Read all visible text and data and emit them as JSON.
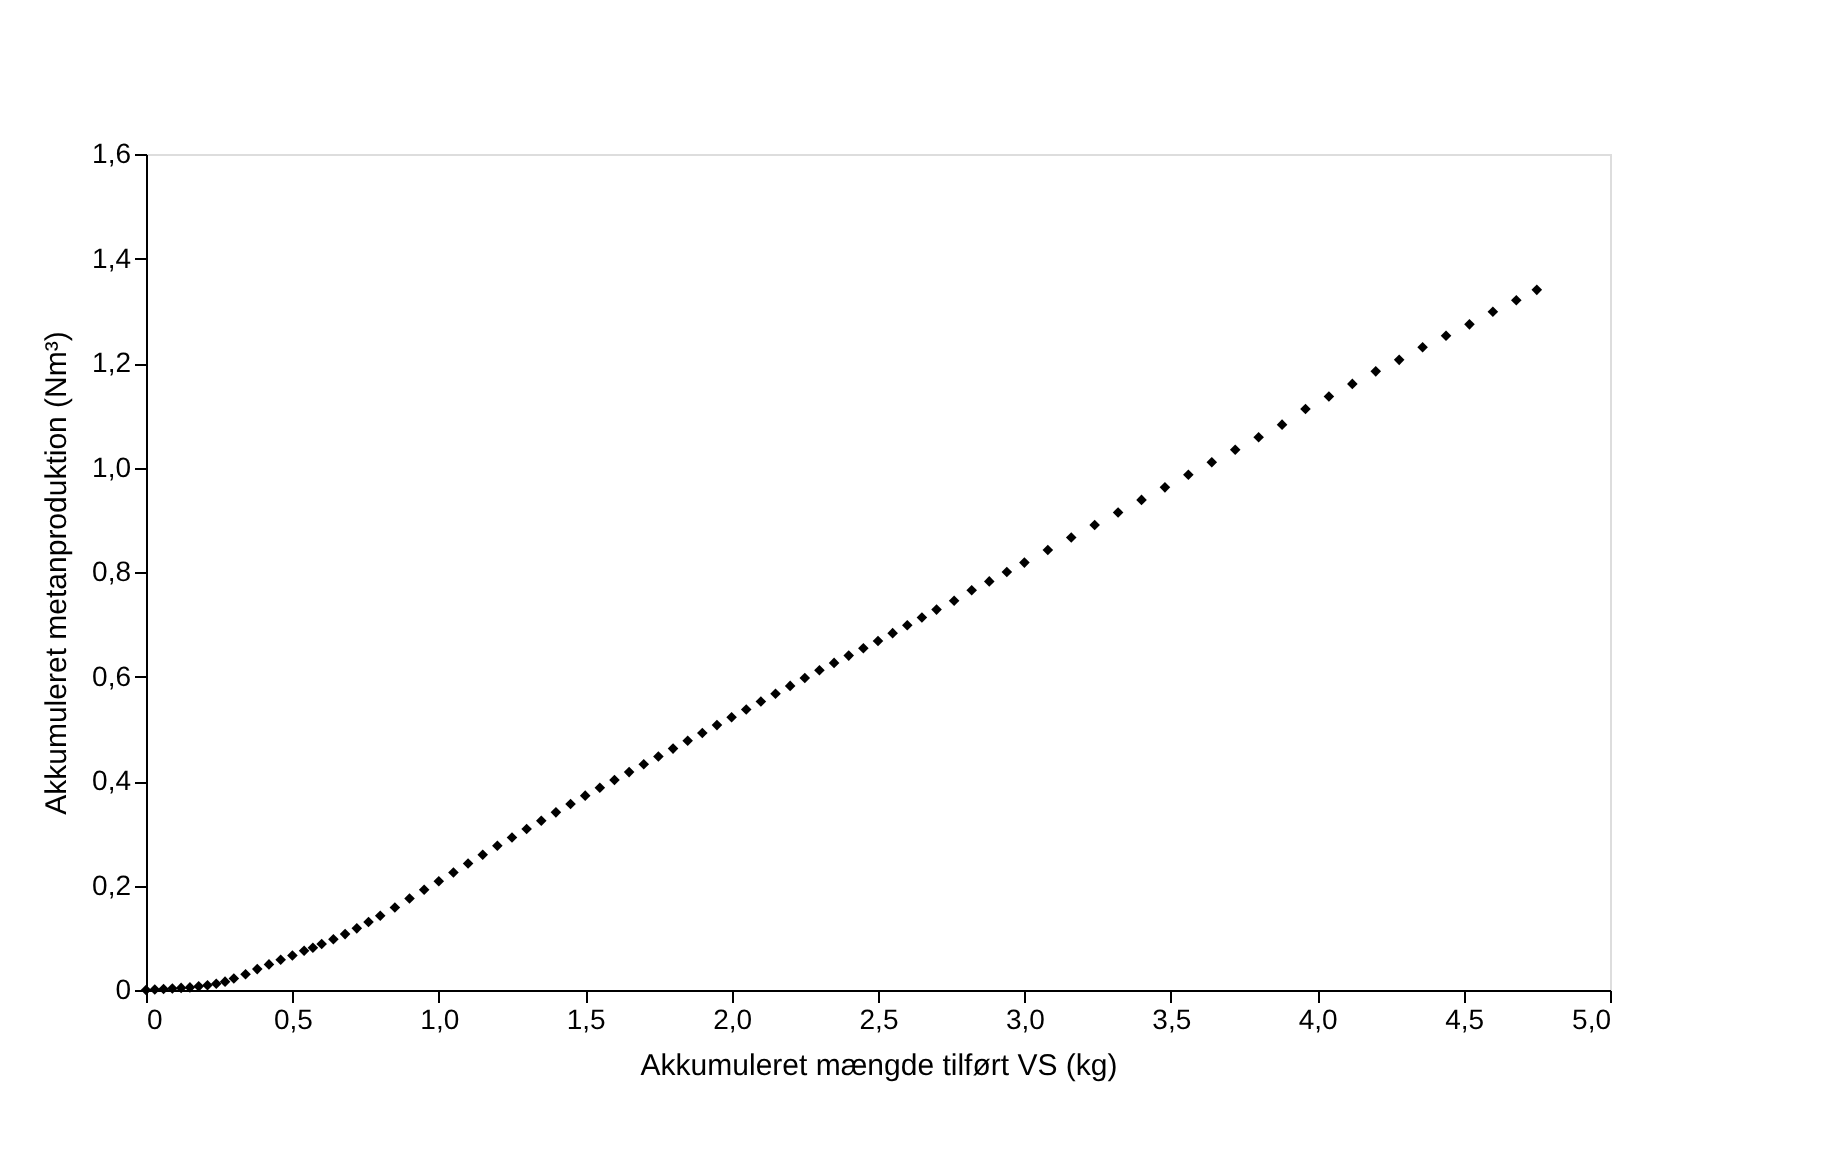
{
  "chart_data": {
    "type": "scatter",
    "xlabel": "Akkumuleret mængde tilført VS (kg)",
    "ylabel": "Akkumuleret metanproduktion (Nm³)",
    "marker": "diamond",
    "grid": false,
    "xlim": [
      0,
      5
    ],
    "ylim": [
      0,
      1.6
    ],
    "xticks": [
      0,
      {
        "value": 0.5,
        "label": "0,5"
      },
      {
        "value": 1.0,
        "label": "1,0"
      },
      {
        "value": 1.5,
        "label": "1,5"
      },
      {
        "value": 2.0,
        "label": "2,0"
      },
      {
        "value": 2.5,
        "label": "2,5"
      },
      {
        "value": 3.0,
        "label": "3,0"
      },
      {
        "value": 3.5,
        "label": "3,5"
      },
      {
        "value": 4.0,
        "label": "4,0"
      },
      {
        "value": 4.5,
        "label": "4,5"
      },
      {
        "value": 5.0,
        "label": "5,0"
      }
    ],
    "yticks": [
      0,
      {
        "value": 0.2,
        "label": "0,2"
      },
      {
        "value": 0.4,
        "label": "0,4"
      },
      {
        "value": 0.6,
        "label": "0,6"
      },
      {
        "value": 0.8,
        "label": "0,8"
      },
      {
        "value": 1.0,
        "label": "1,0"
      },
      {
        "value": 1.2,
        "label": "1,2"
      },
      {
        "value": 1.4,
        "label": "1,4"
      },
      {
        "value": 1.6,
        "label": "1,6"
      }
    ],
    "series": [
      {
        "color": "#000000",
        "x": [
          0.0,
          0.03,
          0.06,
          0.09,
          0.12,
          0.15,
          0.18,
          0.21,
          0.24,
          0.27,
          0.3,
          0.34,
          0.38,
          0.42,
          0.46,
          0.5,
          0.54,
          0.57,
          0.6,
          0.64,
          0.68,
          0.72,
          0.76,
          0.8,
          0.85,
          0.9,
          0.95,
          1.0,
          1.05,
          1.1,
          1.15,
          1.2,
          1.25,
          1.3,
          1.35,
          1.4,
          1.45,
          1.5,
          1.55,
          1.6,
          1.65,
          1.7,
          1.75,
          1.8,
          1.85,
          1.9,
          1.95,
          2.0,
          2.05,
          2.1,
          2.15,
          2.2,
          2.25
        ],
        "values": [
          0.0,
          0.001,
          0.002,
          0.003,
          0.004,
          0.005,
          0.007,
          0.009,
          0.012,
          0.016,
          0.022,
          0.03,
          0.04,
          0.049,
          0.058,
          0.066,
          0.075,
          0.081,
          0.088,
          0.097,
          0.107,
          0.118,
          0.13,
          0.142,
          0.158,
          0.175,
          0.192,
          0.208,
          0.225,
          0.242,
          0.259,
          0.276,
          0.292,
          0.308,
          0.324,
          0.34,
          0.356,
          0.372,
          0.387,
          0.402,
          0.417,
          0.432,
          0.447,
          0.462,
          0.477,
          0.492,
          0.507,
          0.522,
          0.537,
          0.552,
          0.567,
          0.582,
          0.597
        ]
      },
      {
        "color": "#000000",
        "x": [
          2.3,
          2.35,
          2.4,
          2.45,
          2.5,
          2.55,
          2.6,
          2.65,
          2.7,
          2.76
        ],
        "values": [
          0.612,
          0.626,
          0.64,
          0.654,
          0.668,
          0.683,
          0.698,
          0.713,
          0.728,
          0.745
        ]
      },
      {
        "color": "#000000",
        "x": [
          2.82,
          2.88,
          2.94,
          3.0,
          3.08,
          3.16,
          3.24,
          3.32,
          3.4,
          3.48,
          3.56,
          3.64,
          3.72,
          3.8,
          3.88,
          3.96,
          4.04,
          4.12,
          4.2,
          4.28,
          4.36,
          4.44,
          4.52,
          4.6,
          4.68,
          4.75
        ],
        "values": [
          0.765,
          0.782,
          0.8,
          0.818,
          0.842,
          0.866,
          0.89,
          0.914,
          0.938,
          0.962,
          0.986,
          1.01,
          1.034,
          1.058,
          1.082,
          1.112,
          1.136,
          1.16,
          1.184,
          1.206,
          1.23,
          1.252,
          1.274,
          1.298,
          1.32,
          1.34
        ]
      }
    ]
  }
}
